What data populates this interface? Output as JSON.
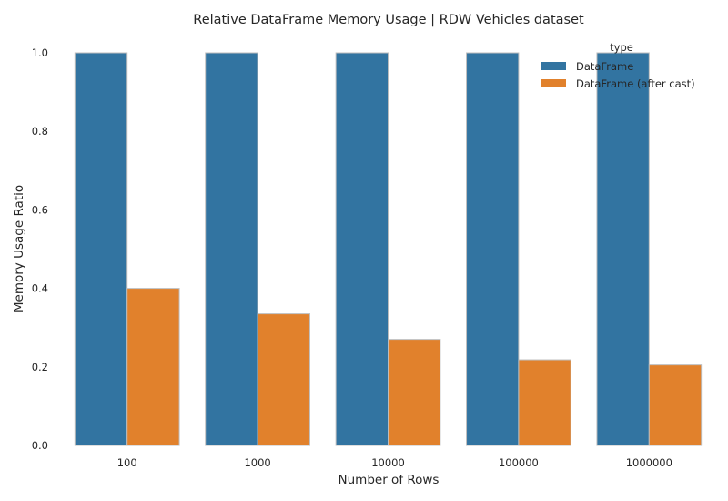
{
  "chart_data": {
    "type": "bar",
    "title": "Relative DataFrame Memory Usage | RDW Vehicles dataset",
    "xlabel": "Number of Rows",
    "ylabel": "Memory Usage Ratio",
    "categories": [
      "100",
      "1000",
      "10000",
      "100000",
      "1000000"
    ],
    "ylim": [
      0,
      1.0
    ],
    "yticks": [
      "0.0",
      "0.2",
      "0.4",
      "0.6",
      "0.8",
      "1.0"
    ],
    "grid": false,
    "legend": {
      "title": "type",
      "placement": "top-right"
    },
    "series": [
      {
        "name": "DataFrame",
        "color": "#3274a1",
        "values": [
          1.0,
          1.0,
          1.0,
          1.0,
          1.0
        ]
      },
      {
        "name": "DataFrame (after cast)",
        "color": "#e1812c",
        "values": [
          0.4,
          0.335,
          0.27,
          0.218,
          0.205
        ]
      }
    ]
  }
}
